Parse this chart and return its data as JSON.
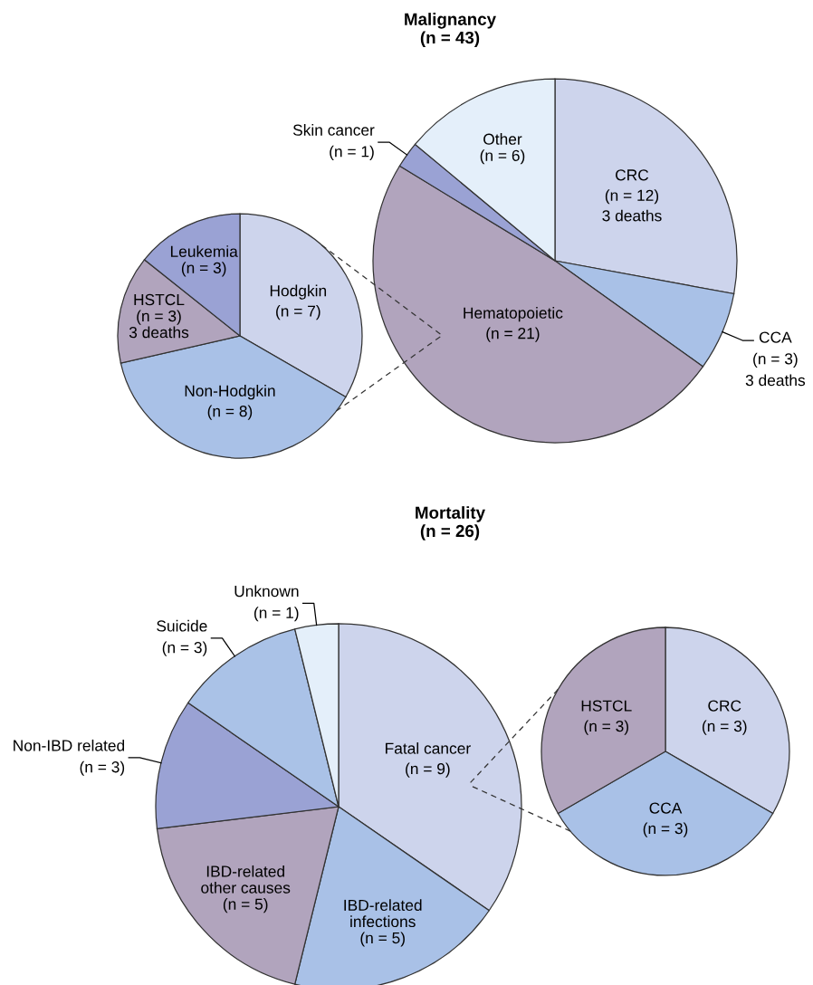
{
  "chart_data": [
    {
      "type": "pie",
      "title": "Malignancy\n(n = 43)",
      "categories": [
        "CRC",
        "CCA",
        "Hematopoietic",
        "Skin cancer",
        "Other"
      ],
      "values": [
        12,
        3,
        21,
        1,
        6
      ],
      "value_labels": [
        "(n = 12)\n3 deaths",
        "(n = 3)\n3 deaths",
        "(n = 21)",
        "(n = 1)",
        "(n = 6)"
      ],
      "colors": [
        "#cdd4ec",
        "#a9c1e7",
        "#b1a4bd",
        "#9aa2d4",
        "#e4effa"
      ]
    },
    {
      "type": "pie",
      "categories": [
        "Hodgkin",
        "Non-Hodgkin",
        "HSTCL",
        "Leukemia"
      ],
      "values": [
        7,
        8,
        3,
        3
      ],
      "value_labels": [
        "(n = 7)",
        "(n = 8)",
        "(n = 3)\n3 deaths",
        "(n = 3)"
      ],
      "colors": [
        "#cdd4ec",
        "#a9c1e7",
        "#b1a4bd",
        "#9aa2d4"
      ]
    },
    {
      "type": "pie",
      "title": "Mortality\n(n = 26)",
      "categories": [
        "Fatal cancer",
        "IBD-related\ninfections",
        "IBD-related\nother causes",
        "Non-IBD related",
        "Suicide",
        "Unknown"
      ],
      "values": [
        9,
        5,
        5,
        3,
        3,
        1
      ],
      "value_labels": [
        "(n = 9)",
        "(n = 5)",
        "(n = 5)",
        "(n = 3)",
        "(n = 3)",
        "(n = 1)"
      ],
      "colors": [
        "#cdd4ec",
        "#a9c1e7",
        "#b1a4bd",
        "#9aa2d4",
        "#aac2e7",
        "#e4effa"
      ]
    },
    {
      "type": "pie",
      "categories": [
        "CRC",
        "CCA",
        "HSTCL"
      ],
      "values": [
        3,
        3,
        3
      ],
      "value_labels": [
        "(n = 3)",
        "(n = 3)",
        "(n = 3)"
      ],
      "colors": [
        "#cdd4ec",
        "#a9c1e7",
        "#b1a4bd"
      ]
    }
  ]
}
